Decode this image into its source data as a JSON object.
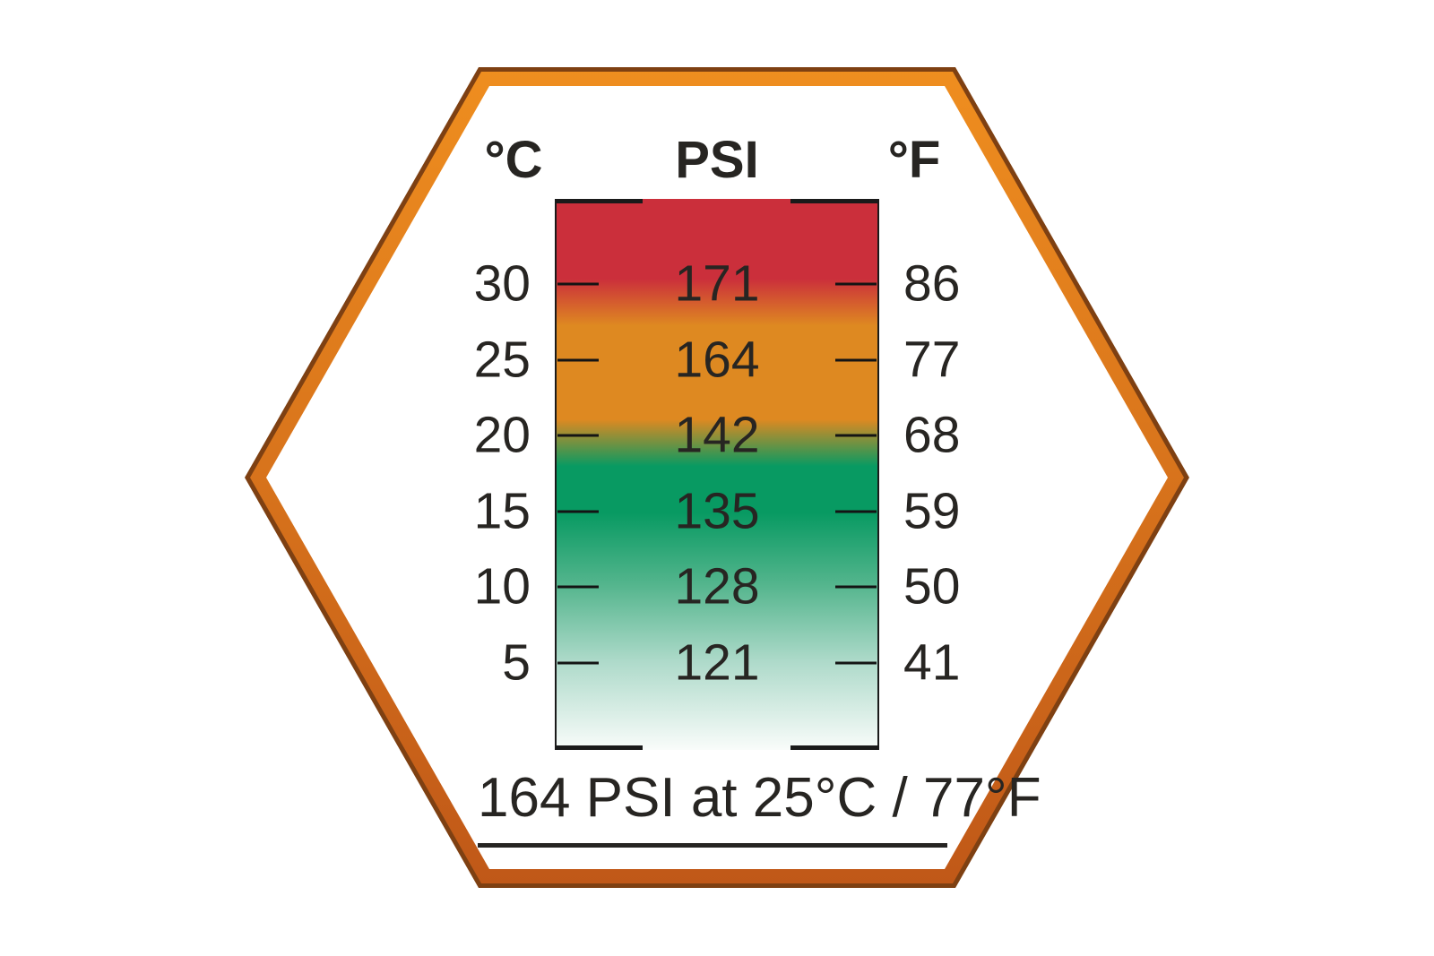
{
  "header": {
    "left": "°C",
    "center": "PSI",
    "right": "°F"
  },
  "chart_data": {
    "type": "table",
    "title": "Tire pressure vs temperature reference scale",
    "columns": [
      "°C",
      "PSI",
      "°F"
    ],
    "rows": [
      {
        "c": "30",
        "psi": "171",
        "f": "86"
      },
      {
        "c": "25",
        "psi": "164",
        "f": "77"
      },
      {
        "c": "20",
        "psi": "142",
        "f": "68"
      },
      {
        "c": "15",
        "psi": "135",
        "f": "59"
      },
      {
        "c": "10",
        "psi": "128",
        "f": "50"
      },
      {
        "c": "5",
        "psi": "121",
        "f": "41"
      }
    ],
    "zones": [
      {
        "color_name": "red",
        "color": "#CB2F3B",
        "position": "top of scale, above ~29°C"
      },
      {
        "color_name": "orange",
        "color": "#DE8921",
        "position": "middle, ~19°C to ~29°C"
      },
      {
        "color_name": "green",
        "color": "#089A62",
        "position": "below ~19°C, fading to white at bottom"
      }
    ],
    "legend_position": "none",
    "grid": false
  },
  "footer": {
    "label": "164 PSI at 25°C / 77°F"
  },
  "colors": {
    "red": "#CB2F3B",
    "orange": "#DE8921",
    "green": "#089A62",
    "green_fade_mid": "#54B58D",
    "green_fade_light": "#AEDACA",
    "green_fade_end": "#F9FCFA",
    "hex_orange_top": "#EF8E1F",
    "hex_orange_bottom": "#C05818",
    "hex_dark": "#7E4012",
    "text": "#272522"
  }
}
